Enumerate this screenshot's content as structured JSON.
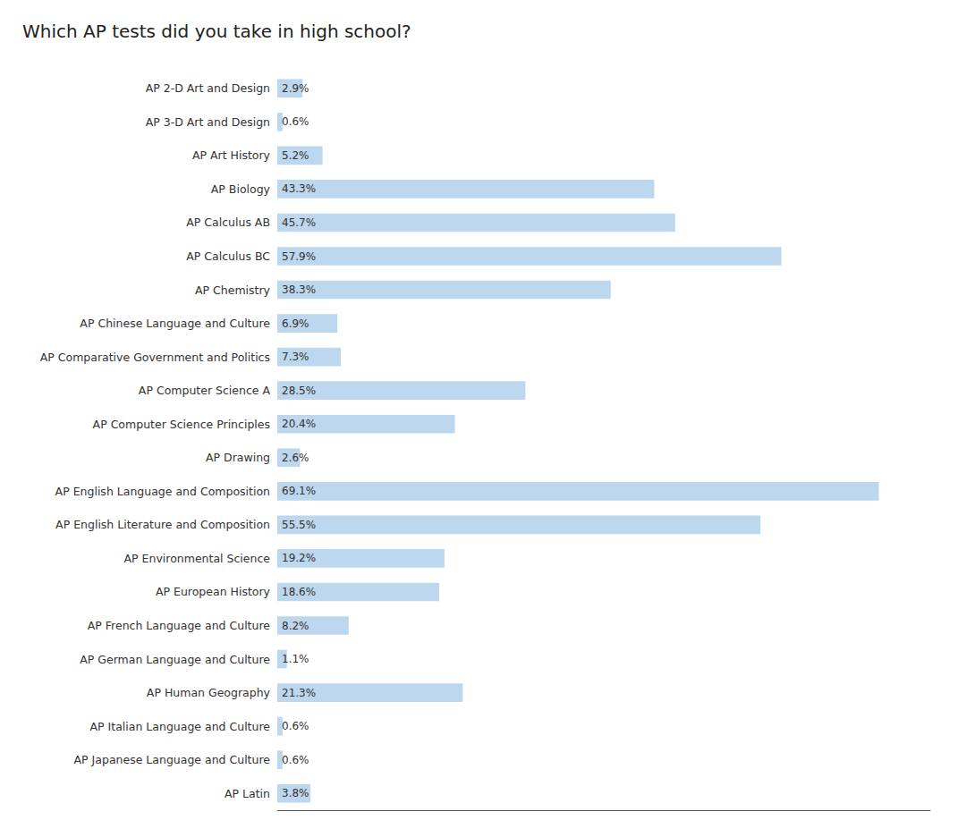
{
  "chart_data": {
    "type": "bar",
    "orientation": "horizontal",
    "title": "Which AP tests did you take in high school?",
    "categories": [
      "AP 2-D Art and Design",
      "AP 3-D Art and Design",
      "AP Art History",
      "AP Biology",
      "AP Calculus AB",
      "AP Calculus BC",
      "AP Chemistry",
      "AP Chinese Language and Culture",
      "AP Comparative Government and Politics",
      "AP Computer Science A",
      "AP Computer Science Principles",
      "AP Drawing",
      "AP English Language and Composition",
      "AP English Literature and Composition",
      "AP Environmental Science",
      "AP European History",
      "AP French Language and Culture",
      "AP German Language and Culture",
      "AP Human Geography",
      "AP Italian Language and Culture",
      "AP Japanese Language and Culture",
      "AP Latin"
    ],
    "values": [
      2.9,
      0.6,
      5.2,
      43.3,
      45.7,
      57.9,
      38.3,
      6.9,
      7.3,
      28.5,
      20.4,
      2.6,
      69.1,
      55.5,
      19.2,
      18.6,
      8.2,
      1.1,
      21.3,
      0.6,
      0.6,
      3.8
    ],
    "value_labels": [
      "2.9%",
      "0.6%",
      "5.2%",
      "43.3%",
      "45.7%",
      "57.9%",
      "38.3%",
      "6.9%",
      "7.3%",
      "28.5%",
      "20.4%",
      "2.6%",
      "69.1%",
      "55.5%",
      "19.2%",
      "18.6%",
      "8.2%",
      "1.1%",
      "21.3%",
      "0.6%",
      "0.6%",
      "3.8%"
    ],
    "data_labels": true,
    "color": "#bdd7ee",
    "xlim": [
      0,
      75
    ],
    "grid": false,
    "tick_labels": "y"
  }
}
